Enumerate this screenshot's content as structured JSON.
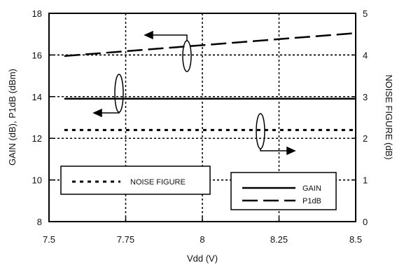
{
  "chart_data": {
    "type": "line",
    "xlabel": "Vdd (V)",
    "ylabel_left": "GAIN (dB), P1dB (dBm)",
    "ylabel_right": "NOISE FIGURE (dB)",
    "xlim": [
      7.5,
      8.5
    ],
    "ylim_left": [
      8,
      18
    ],
    "ylim_right": [
      0,
      5
    ],
    "x_ticks": [
      "7.5",
      "7.75",
      "8",
      "8.25",
      "8.5"
    ],
    "y_ticks_left": [
      "8",
      "10",
      "12",
      "14",
      "16",
      "18"
    ],
    "y_ticks_right": [
      "0",
      "1",
      "2",
      "3",
      "4",
      "5"
    ],
    "grid": true,
    "series": [
      {
        "name": "GAIN",
        "axis": "left",
        "style": "solid",
        "x": [
          7.55,
          8.5
        ],
        "y": [
          13.9,
          13.9
        ]
      },
      {
        "name": "P1dB",
        "axis": "left",
        "style": "long-dash",
        "x": [
          7.55,
          8.5
        ],
        "y": [
          15.95,
          17.05
        ]
      },
      {
        "name": "NOISE FIGURE",
        "axis": "right",
        "style": "dotted",
        "x": [
          7.55,
          8.5
        ],
        "y": [
          2.2,
          2.2
        ]
      }
    ],
    "legends": [
      {
        "position": "lower-left",
        "entries": [
          "NOISE FIGURE"
        ]
      },
      {
        "position": "lower-right",
        "entries": [
          "GAIN",
          "P1dB"
        ]
      }
    ]
  }
}
